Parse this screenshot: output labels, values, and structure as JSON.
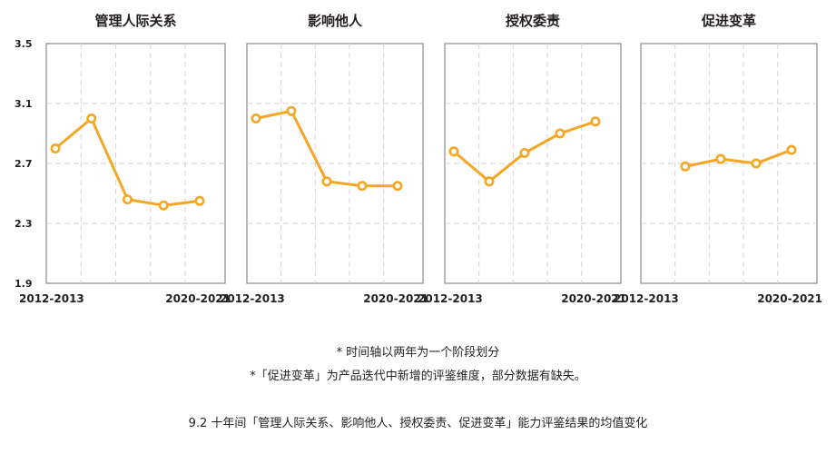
{
  "chart_data": [
    {
      "type": "line",
      "title": "管理人际关系",
      "x": [
        "2012-2013",
        "",
        "",
        "",
        "2020-2021"
      ],
      "values": [
        2.8,
        3.0,
        2.46,
        2.42,
        2.45
      ],
      "ylim": [
        1.9,
        3.5
      ],
      "yticks": [
        "3.5",
        "3.1",
        "2.7",
        "2.3",
        "1.9"
      ],
      "xtick_labels": [
        "2012-2013",
        "2020-2021"
      ],
      "color": "#f5a623",
      "grid": true
    },
    {
      "type": "line",
      "title": "影响他人",
      "x": [
        "2012-2013",
        "",
        "",
        "",
        "2020-2021"
      ],
      "values": [
        3.0,
        3.05,
        2.58,
        2.55,
        2.55
      ],
      "ylim": [
        1.9,
        3.5
      ],
      "xtick_labels": [
        "2012-2013",
        "2020-2021"
      ],
      "color": "#f5a623",
      "grid": true
    },
    {
      "type": "line",
      "title": "授权委责",
      "x": [
        "2012-2013",
        "",
        "",
        "",
        "2020-2021"
      ],
      "values": [
        2.78,
        2.58,
        2.77,
        2.9,
        2.98
      ],
      "ylim": [
        1.9,
        3.5
      ],
      "xtick_labels": [
        "2012-2013",
        "2020-2021"
      ],
      "color": "#f5a623",
      "grid": true
    },
    {
      "type": "line",
      "title": "促进变革",
      "x": [
        "2012-2013",
        "",
        "",
        "",
        "2020-2021"
      ],
      "values": [
        null,
        2.68,
        2.73,
        2.7,
        2.79
      ],
      "ylim": [
        1.9,
        3.5
      ],
      "xtick_labels": [
        "2012-2013",
        "2020-2021"
      ],
      "color": "#f5a623",
      "grid": true
    }
  ],
  "notes": [
    "* 时间轴以两年为一个阶段划分",
    "*「促进变革」为产品迭代中新增的评鉴维度，部分数据有缺失。"
  ],
  "caption": "9.2 十年间「管理人际关系、影响他人、授权委责、促进变革」能力评鉴结果的均值变化"
}
